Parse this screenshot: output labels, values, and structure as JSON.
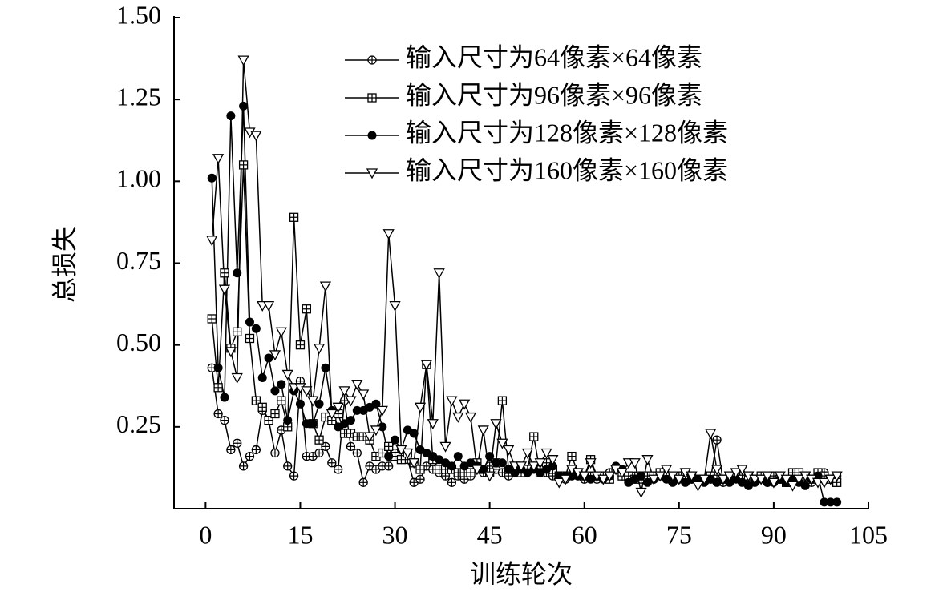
{
  "chart_data": {
    "type": "line",
    "x_label": "训练轮次",
    "y_label": "总损失",
    "x": [
      1,
      2,
      3,
      4,
      5,
      6,
      7,
      8,
      9,
      10,
      11,
      12,
      13,
      14,
      15,
      16,
      17,
      18,
      19,
      20,
      21,
      22,
      23,
      24,
      25,
      26,
      27,
      28,
      29,
      30,
      31,
      32,
      33,
      34,
      35,
      36,
      37,
      38,
      39,
      40,
      41,
      42,
      43,
      44,
      45,
      46,
      47,
      48,
      49,
      50,
      51,
      52,
      53,
      54,
      55,
      56,
      57,
      58,
      59,
      60,
      61,
      62,
      63,
      64,
      65,
      66,
      67,
      68,
      69,
      70,
      71,
      72,
      73,
      74,
      75,
      76,
      77,
      78,
      79,
      80,
      81,
      82,
      83,
      84,
      85,
      86,
      87,
      88,
      89,
      90,
      91,
      92,
      93,
      94,
      95,
      96,
      97,
      98,
      99,
      100
    ],
    "series": [
      {
        "name": "输入尺寸为64像素×64像素",
        "color": "#000000",
        "marker": "circle-plus",
        "values": [
          0.43,
          0.29,
          0.27,
          0.18,
          0.2,
          0.13,
          0.16,
          0.18,
          0.3,
          0.27,
          0.17,
          0.24,
          0.13,
          0.1,
          0.39,
          0.16,
          0.16,
          0.17,
          0.19,
          0.14,
          0.12,
          0.33,
          0.19,
          0.17,
          0.08,
          0.13,
          0.12,
          0.13,
          0.13,
          0.17,
          0.16,
          0.15,
          0.08,
          0.09,
          0.13,
          0.12,
          0.11,
          0.1,
          0.08,
          0.1,
          0.09,
          0.1,
          0.12,
          0.11,
          0.13,
          0.12,
          0.11,
          0.1,
          0.11,
          0.11,
          0.12,
          0.13,
          0.12,
          0.11,
          0.1,
          0.1,
          0.09,
          0.1,
          0.1,
          0.09,
          0.1,
          0.09,
          0.1,
          0.11,
          0.12,
          0.1,
          0.09,
          0.1,
          0.09,
          0.1,
          0.09,
          0.1,
          0.1,
          0.09,
          0.09,
          0.1,
          0.09,
          0.08,
          0.09,
          0.09,
          0.21,
          0.08,
          0.09,
          0.1,
          0.09,
          0.08,
          0.09,
          0.1,
          0.08,
          0.09,
          0.09,
          0.08,
          0.1,
          0.11,
          0.09,
          0.08,
          0.1,
          0.11,
          0.09,
          0.1
        ]
      },
      {
        "name": "输入尺寸为96像素×96像素",
        "color": "#000000",
        "marker": "square-plus",
        "values": [
          0.58,
          0.37,
          0.72,
          0.49,
          0.54,
          1.05,
          0.52,
          0.33,
          0.31,
          0.27,
          0.29,
          0.33,
          0.25,
          0.89,
          0.5,
          0.61,
          0.26,
          0.21,
          0.28,
          0.27,
          0.29,
          0.23,
          0.23,
          0.22,
          0.22,
          0.21,
          0.16,
          0.17,
          0.19,
          0.16,
          0.15,
          0.17,
          0.14,
          0.12,
          0.44,
          0.15,
          0.12,
          0.12,
          0.12,
          0.11,
          0.11,
          0.11,
          0.14,
          0.12,
          0.11,
          0.14,
          0.33,
          0.12,
          0.12,
          0.11,
          0.12,
          0.22,
          0.11,
          0.14,
          0.12,
          0.1,
          0.1,
          0.16,
          0.11,
          0.1,
          0.15,
          0.1,
          0.1,
          0.09,
          0.12,
          0.1,
          0.1,
          0.09,
          0.1,
          0.1,
          0.1,
          0.11,
          0.1,
          0.09,
          0.1,
          0.11,
          0.1,
          0.09,
          0.09,
          0.1,
          0.09,
          0.09,
          0.1,
          0.1,
          0.09,
          0.1,
          0.09,
          0.1,
          0.09,
          0.1,
          0.09,
          0.08,
          0.11,
          0.11,
          0.1,
          0.09,
          0.11,
          0.1,
          0.09,
          0.08
        ]
      },
      {
        "name": "输入尺寸为128像素×128像素",
        "color": "#000000",
        "marker": "filled-circle",
        "values": [
          1.01,
          0.43,
          0.34,
          1.2,
          0.72,
          1.23,
          0.57,
          0.55,
          0.4,
          0.46,
          0.36,
          0.38,
          0.27,
          0.36,
          0.32,
          0.26,
          0.26,
          0.32,
          0.43,
          0.3,
          0.25,
          0.26,
          0.27,
          0.3,
          0.3,
          0.31,
          0.32,
          0.25,
          0.16,
          0.21,
          0.18,
          0.24,
          0.23,
          0.18,
          0.17,
          0.16,
          0.15,
          0.14,
          0.13,
          0.16,
          0.13,
          0.14,
          0.13,
          0.12,
          0.16,
          0.14,
          0.14,
          0.12,
          0.11,
          0.12,
          0.11,
          0.12,
          0.11,
          0.12,
          0.13,
          0.1,
          0.1,
          0.1,
          0.1,
          0.1,
          0.09,
          0.1,
          0.09,
          0.1,
          0.13,
          0.12,
          0.08,
          0.09,
          0.1,
          0.08,
          0.09,
          0.1,
          0.09,
          0.08,
          0.09,
          0.08,
          0.09,
          0.09,
          0.08,
          0.09,
          0.08,
          0.09,
          0.08,
          0.09,
          0.08,
          0.07,
          0.08,
          0.09,
          0.08,
          0.08,
          0.09,
          0.08,
          0.09,
          0.08,
          0.07,
          0.09,
          0.1,
          0.02,
          0.02,
          0.02
        ]
      },
      {
        "name": "输入尺寸为160像素×160像素",
        "color": "#000000",
        "marker": "down-triangle",
        "values": [
          0.82,
          1.07,
          0.67,
          0.48,
          0.4,
          1.37,
          1.15,
          1.14,
          0.62,
          0.62,
          0.47,
          0.54,
          0.41,
          0.37,
          0.37,
          0.36,
          0.33,
          0.49,
          0.68,
          0.29,
          0.31,
          0.36,
          0.33,
          0.38,
          0.35,
          0.22,
          0.24,
          0.3,
          0.84,
          0.62,
          0.18,
          0.17,
          0.14,
          0.31,
          0.44,
          0.26,
          0.72,
          0.19,
          0.33,
          0.28,
          0.32,
          0.28,
          0.12,
          0.24,
          0.1,
          0.26,
          0.2,
          0.18,
          0.13,
          0.13,
          0.17,
          0.13,
          0.14,
          0.17,
          0.15,
          0.08,
          0.09,
          0.12,
          0.11,
          0.1,
          0.14,
          0.1,
          0.09,
          0.1,
          0.12,
          0.11,
          0.14,
          0.14,
          0.05,
          0.15,
          0.09,
          0.1,
          0.12,
          0.1,
          0.09,
          0.11,
          0.1,
          0.07,
          0.09,
          0.23,
          0.12,
          0.09,
          0.1,
          0.11,
          0.12,
          0.1,
          0.09,
          0.09,
          0.1,
          0.08,
          0.1,
          0.09,
          0.07,
          0.09,
          0.1,
          0.09,
          0.08,
          0.08,
          0.09,
          0.1
        ]
      }
    ],
    "xlim": [
      -5,
      105
    ],
    "xticks": [
      0,
      15,
      30,
      45,
      60,
      75,
      90,
      105
    ],
    "ylim": [
      0,
      1.5
    ],
    "yticks": [
      {
        "value": 0.25,
        "label": "0.25"
      },
      {
        "value": 0.5,
        "label": "0.50"
      },
      {
        "value": 0.75,
        "label": "0.75"
      },
      {
        "value": 1.0,
        "label": "1.00"
      },
      {
        "value": 1.25,
        "label": "1.25"
      },
      {
        "value": 1.5,
        "label": "1.50"
      }
    ],
    "legend": "upper right",
    "grid": false
  }
}
